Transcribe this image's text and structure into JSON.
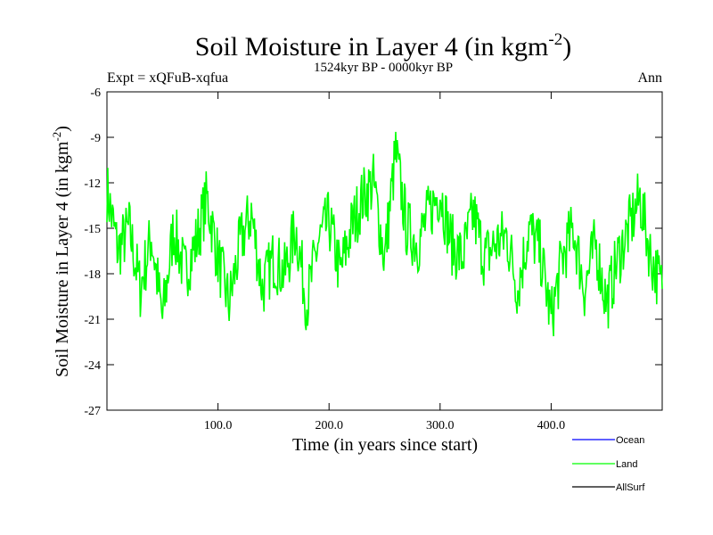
{
  "chart_data": {
    "type": "line",
    "title": "Soil Moisture in Layer 4 (in kgm",
    "title_superscript": "-2",
    "title_suffix": ")",
    "subtitle": "1524kyr BP - 0000kyr BP",
    "experiment_label": "Expt = xQFuB-xqfua",
    "season_label": "Ann",
    "xlabel": "Time (in years since start)",
    "ylabel": "Soil Moisture in Layer 4 (in kgm",
    "ylabel_superscript": "-2",
    "ylabel_suffix": ")",
    "xlim": [
      0,
      500
    ],
    "ylim": [
      -27,
      -6
    ],
    "x_ticks": [
      100,
      200,
      300,
      400
    ],
    "x_tick_labels": [
      "100.0",
      "200.0",
      "300.0",
      "400.0"
    ],
    "y_ticks": [
      -6,
      -9,
      -12,
      -15,
      -18,
      -21,
      -24,
      -27
    ],
    "y_tick_labels": [
      "-6",
      "-9",
      "-12",
      "-15",
      "-18",
      "-21",
      "-24",
      "-27"
    ],
    "legend": [
      {
        "name": "Ocean",
        "color": "#0000ff"
      },
      {
        "name": "Land",
        "color": "#00ff00"
      },
      {
        "name": "AllSurf",
        "color": "#000000"
      }
    ],
    "series": [
      {
        "name": "Land",
        "color": "#00ff00",
        "x": [
          0,
          10,
          20,
          30,
          40,
          50,
          60,
          70,
          80,
          90,
          100,
          110,
          120,
          130,
          140,
          150,
          160,
          170,
          180,
          190,
          200,
          210,
          220,
          230,
          240,
          250,
          260,
          270,
          280,
          290,
          300,
          310,
          320,
          330,
          340,
          350,
          360,
          370,
          380,
          390,
          400,
          410,
          420,
          430,
          440,
          450,
          460,
          470,
          480,
          490,
          500
        ],
        "values": [
          -12.5,
          -16.5,
          -15,
          -19,
          -15.5,
          -21,
          -15,
          -18,
          -16,
          -13,
          -17,
          -20,
          -16,
          -14,
          -19,
          -17,
          -18,
          -15,
          -20,
          -16,
          -14.5,
          -18,
          -15,
          -13,
          -12,
          -17,
          -10,
          -15,
          -16,
          -14,
          -12.5,
          -16,
          -17,
          -14,
          -17,
          -16,
          -15.5,
          -19,
          -15,
          -16.5,
          -21,
          -17,
          -15,
          -19,
          -16,
          -20,
          -17,
          -15,
          -13,
          -17,
          -19
        ]
      }
    ]
  }
}
